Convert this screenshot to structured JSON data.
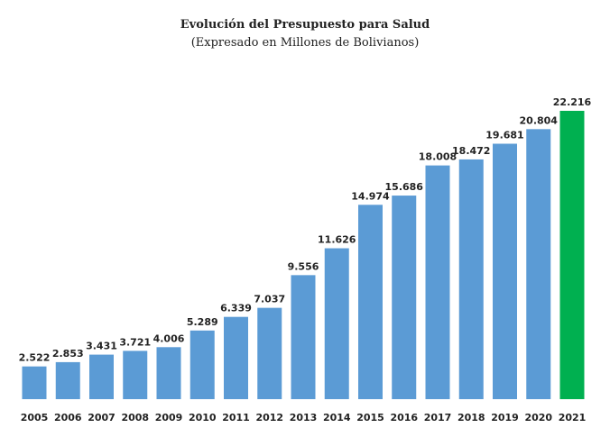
{
  "chart_data": {
    "type": "bar",
    "title": "Evolución del Presupuesto para Salud",
    "subtitle": "(Expresado en Millones de Bolivianos)",
    "xlabel": "",
    "ylabel": "",
    "ylim": [
      0,
      22.216
    ],
    "grid": false,
    "legend": "none",
    "categories": [
      "2005",
      "2006",
      "2007",
      "2008",
      "2009",
      "2010",
      "2011",
      "2012",
      "2013",
      "2014",
      "2015",
      "2016",
      "2017",
      "2018",
      "2019",
      "2020",
      "2021"
    ],
    "values": [
      2.522,
      2.853,
      3.431,
      3.721,
      4.006,
      5.289,
      6.339,
      7.037,
      9.556,
      11.626,
      14.974,
      15.686,
      18.008,
      18.472,
      19.681,
      20.804,
      22.216
    ],
    "value_labels": [
      "2.522",
      "2.853",
      "3.431",
      "3.721",
      "4.006",
      "5.289",
      "6.339",
      "7.037",
      "9.556",
      "11.626",
      "14.974",
      "15.686",
      "18.008",
      "18.472",
      "19.681",
      "20.804",
      "22.216"
    ],
    "colors": {
      "bar": "#5b9bd5",
      "highlight": "#00b050",
      "highlight_category": "2021"
    }
  }
}
